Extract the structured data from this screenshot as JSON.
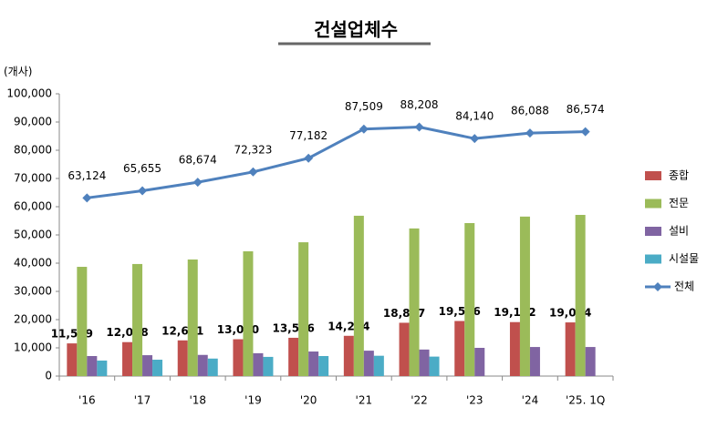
{
  "chart_data": {
    "type": "bar",
    "title": "건설업체수",
    "y_label": "(개사)",
    "categories": [
      "'16",
      "'17",
      "'18",
      "'19",
      "'20",
      "'21",
      "'22",
      "'23",
      "'24",
      "'25. 1Q"
    ],
    "series": [
      {
        "name": "종합",
        "color": "#c0504d",
        "values": [
          11579,
          12028,
          12651,
          13050,
          13566,
          14264,
          18887,
          19516,
          19122,
          19014
        ],
        "value_labels": [
          "11,579",
          "12,028",
          "12,651",
          "13,050",
          "13,566",
          "14,264",
          "18,887",
          "19,516",
          "19,122",
          "19,014"
        ]
      },
      {
        "name": "전문",
        "color": "#9bbb59",
        "values": [
          38700,
          39700,
          41300,
          44200,
          47400,
          56800,
          52300,
          54200,
          56500,
          57100
        ]
      },
      {
        "name": "설비",
        "color": "#8064a2",
        "values": [
          7100,
          7400,
          7500,
          8100,
          8700,
          9000,
          9400,
          10000,
          10300,
          10300
        ]
      },
      {
        "name": "시설물",
        "color": "#4bacc6",
        "values": [
          5500,
          5800,
          6200,
          6800,
          7100,
          7200,
          6900,
          null,
          null,
          null
        ]
      },
      {
        "name": "전체",
        "type": "line",
        "color": "#4f81bd",
        "values": [
          63124,
          65655,
          68674,
          72323,
          77182,
          87509,
          88208,
          84140,
          86088,
          86574
        ],
        "value_labels": [
          "63,124",
          "65,655",
          "68,674",
          "72,323",
          "77,182",
          "87,509",
          "88,208",
          "84,140",
          "86,088",
          "86,574"
        ]
      }
    ],
    "ylim": [
      0,
      100000
    ],
    "yticks": [
      0,
      {
        "value": 10000,
        "label": "10,000"
      },
      {
        "value": 20000,
        "label": "20,000"
      },
      {
        "value": 30000,
        "label": "30,000"
      },
      {
        "value": 40000,
        "label": "40,000"
      },
      {
        "value": 50000,
        "label": "50,000"
      },
      {
        "value": 60000,
        "label": "60,000"
      },
      {
        "value": 70000,
        "label": "70,000"
      },
      {
        "value": 80000,
        "label": "80,000"
      },
      {
        "value": 90000,
        "label": "90,000"
      },
      {
        "value": 100000,
        "label": "100,000"
      }
    ],
    "grid": false,
    "legend": "right"
  }
}
